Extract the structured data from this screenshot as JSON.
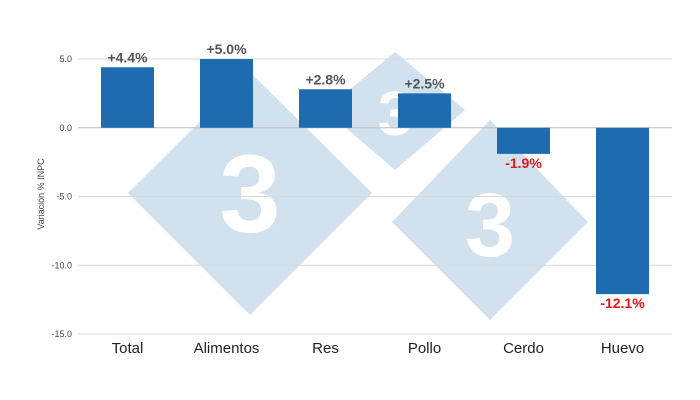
{
  "chart_data": {
    "type": "bar",
    "categories": [
      "Total",
      "Alimentos",
      "Res",
      "Pollo",
      "Cerdo",
      "Huevo"
    ],
    "values": [
      4.4,
      5.0,
      2.8,
      2.5,
      -1.9,
      -12.1
    ],
    "data_labels": [
      "+4.4%",
      "+5.0%",
      "+2.8%",
      "+2.5%",
      "-1.9%",
      "-12.1%"
    ],
    "ylabel": "Variación % INPC",
    "ylim": [
      -15,
      5
    ],
    "yticks": [
      {
        "value": 5,
        "label": "5.0"
      },
      {
        "value": 0,
        "label": "0.0"
      },
      {
        "value": -5,
        "label": "-5.0"
      },
      {
        "value": -10,
        "label": "-10.0"
      },
      {
        "value": -15,
        "label": "-15.0"
      }
    ],
    "grid": true,
    "legend": "none",
    "colors": {
      "bar": "#1e6bb0",
      "positive_label": "#555555",
      "negative_label": "#e8151b",
      "grid": "#d9d9d9",
      "watermark": "#c9dcea"
    }
  },
  "watermark": {
    "glyph": "3"
  }
}
